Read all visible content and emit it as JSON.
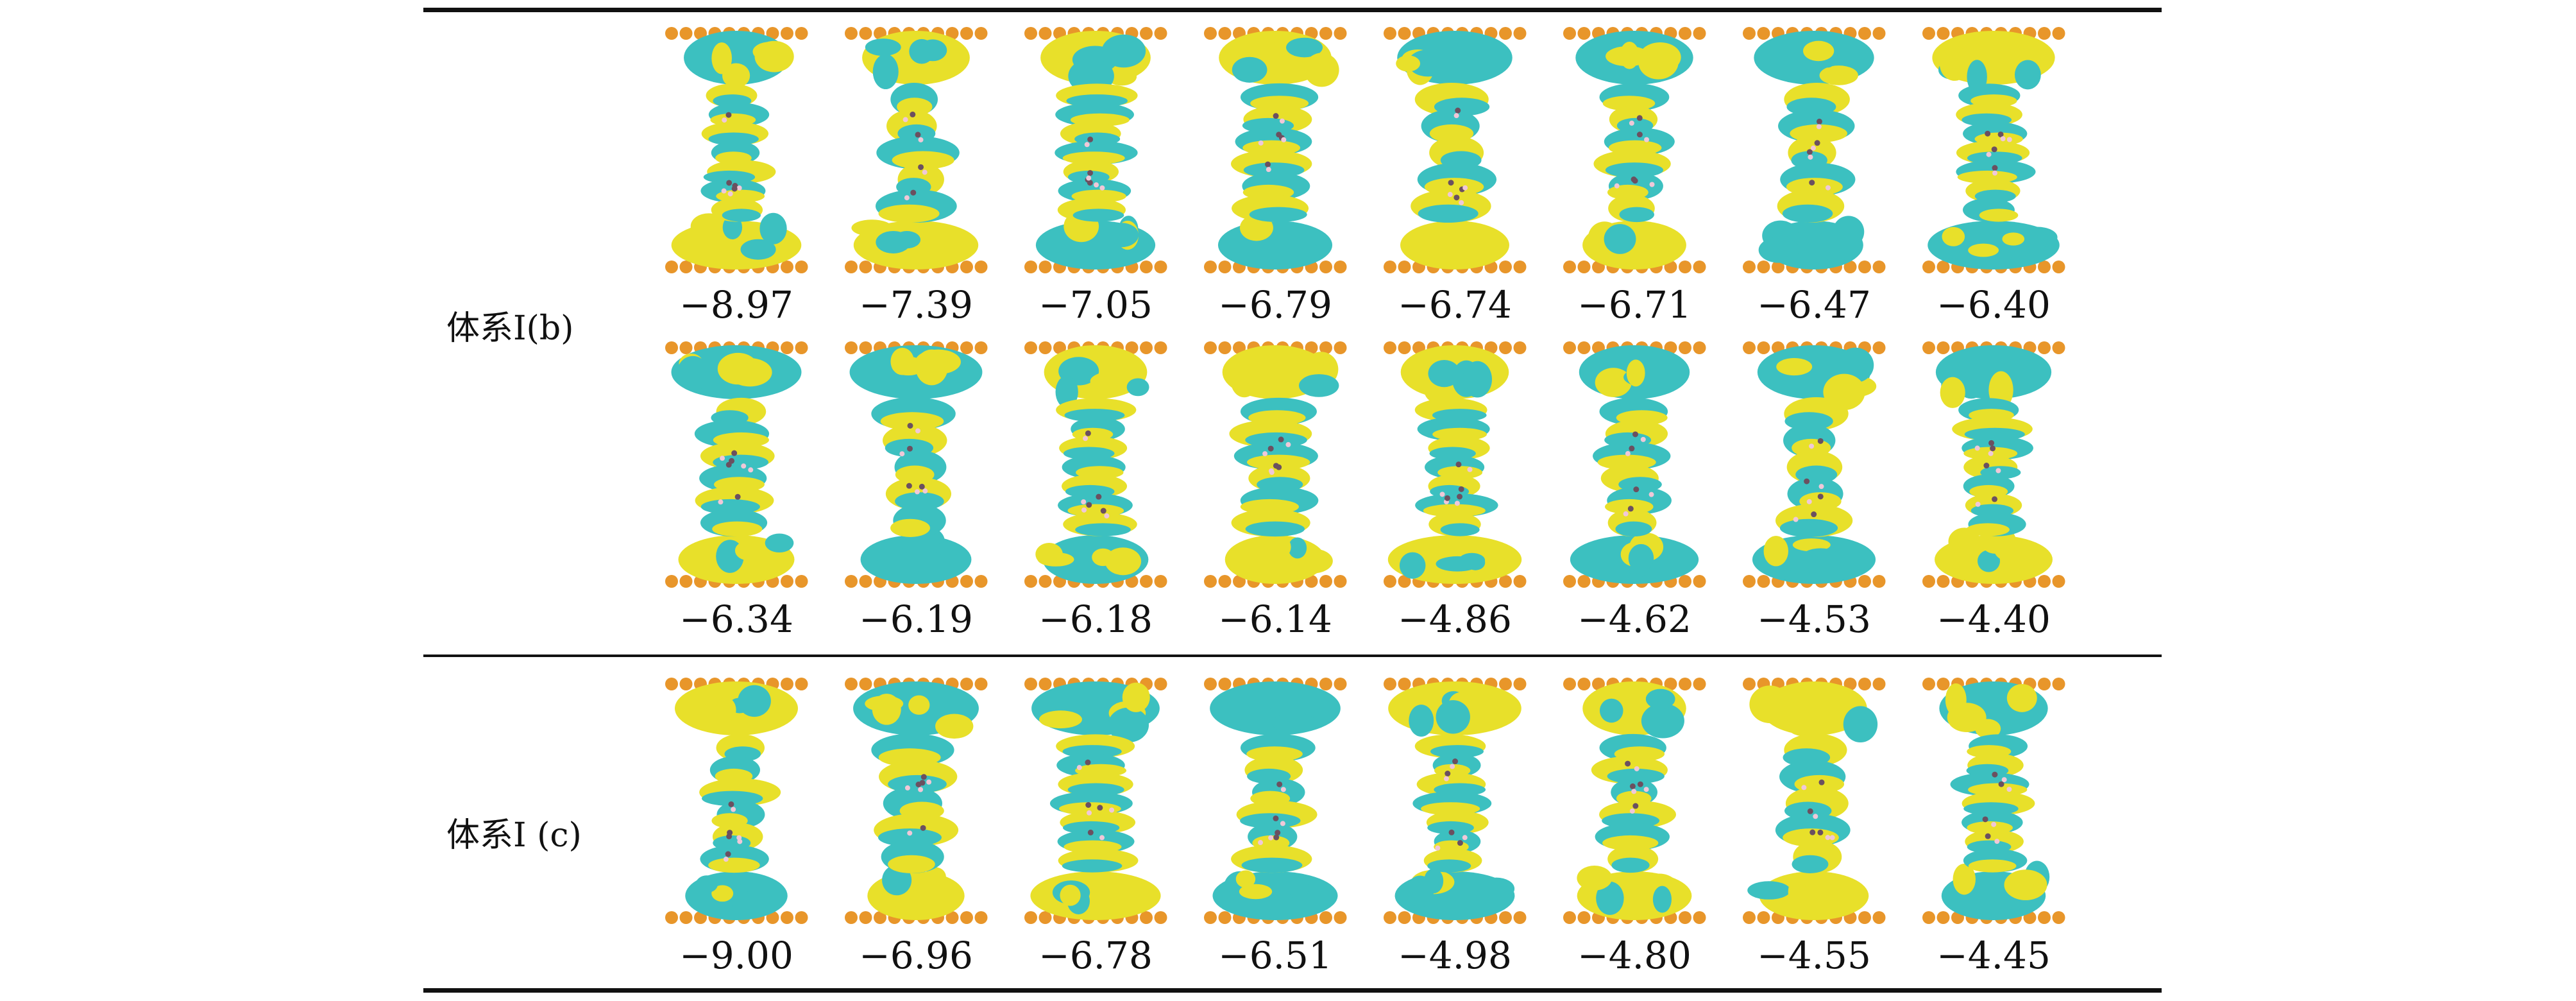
{
  "table": {
    "groups": [
      {
        "label": "体系I(b)",
        "rows": [
          [
            "−8.97",
            "−7.39",
            "−7.05",
            "−6.79",
            "−6.74",
            "−6.71",
            "−6.47",
            "−6.40"
          ],
          [
            "−6.34",
            "−6.19",
            "−6.18",
            "−6.14",
            "−4.86",
            "−4.62",
            "−4.53",
            "−4.40"
          ]
        ]
      },
      {
        "label": "体系I (c)",
        "rows": [
          [
            "−9.00",
            "−6.96",
            "−6.78",
            "−6.51",
            "−4.98",
            "−4.80",
            "−4.55",
            "−4.45"
          ]
        ]
      }
    ]
  },
  "colors": {
    "isosurface_positive": "#e8e02a",
    "isosurface_negative": "#3cc0c0",
    "electrode_atom": "#e8962a",
    "carbon_atom": "#6b5060",
    "hydrogen_atom": "#f0c8d8",
    "rule": "#111111"
  }
}
